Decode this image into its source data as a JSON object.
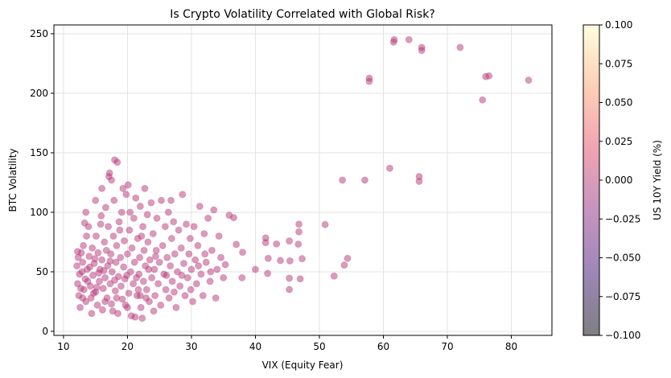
{
  "chart_data": {
    "type": "scatter",
    "title": "Is Crypto Volatility Correlated with Global Risk?",
    "xlabel": "VIX (Equity Fear)",
    "ylabel": "BTC Volatility",
    "xlim": [
      8.5,
      86.35
    ],
    "ylim": [
      -3.4,
      257.4
    ],
    "xticks": [
      10,
      20,
      30,
      40,
      50,
      60,
      70,
      80
    ],
    "yticks": [
      0,
      50,
      100,
      150,
      200,
      250
    ],
    "grid": true,
    "marker_color": "#b73779",
    "marker_alpha": 0.5,
    "colorbar": {
      "label": "US 10Y Yield (%)",
      "colormap": "magma",
      "range": [
        -0.1,
        0.1
      ],
      "ticks": [
        "-0.100",
        "-0.075",
        "-0.050",
        "-0.025",
        "0.000",
        "0.025",
        "0.050",
        "0.075",
        "0.100"
      ],
      "colors": [
        "#000004",
        "#3b0f70",
        "#8c2981",
        "#de4968",
        "#fe9f6d",
        "#fcfdbf"
      ]
    },
    "points": [
      [
        61.7,
        245
      ],
      [
        61.6,
        243
      ],
      [
        64.0,
        245
      ],
      [
        66.0,
        238.5
      ],
      [
        66.0,
        236
      ],
      [
        72.0,
        238.5
      ],
      [
        57.8,
        212.6
      ],
      [
        57.8,
        210
      ],
      [
        76.0,
        214
      ],
      [
        76.5,
        214.6
      ],
      [
        82.7,
        211
      ],
      [
        75.5,
        194.4
      ],
      [
        61.0,
        137
      ],
      [
        53.6,
        127
      ],
      [
        57.1,
        127
      ],
      [
        65.6,
        130
      ],
      [
        65.6,
        126
      ],
      [
        50.9,
        89.7
      ],
      [
        46.8,
        90
      ],
      [
        46.8,
        83.6
      ],
      [
        45.3,
        75.9
      ],
      [
        46.7,
        73.2
      ],
      [
        43.3,
        73.4
      ],
      [
        47.3,
        61
      ],
      [
        45.4,
        59.2
      ],
      [
        43.9,
        59.5
      ],
      [
        54.4,
        61.3
      ],
      [
        53.9,
        55.6
      ],
      [
        52.3,
        46.4
      ],
      [
        45.3,
        44.6
      ],
      [
        47.0,
        44.1
      ],
      [
        45.3,
        35.1
      ],
      [
        41.6,
        78.4
      ],
      [
        41.6,
        74.5
      ],
      [
        42.0,
        61.3
      ],
      [
        41.9,
        48.6
      ],
      [
        40.0,
        52
      ],
      [
        37.9,
        45
      ],
      [
        37.0,
        73
      ],
      [
        38.0,
        66.4
      ],
      [
        35.3,
        56
      ],
      [
        35.9,
        97.5
      ],
      [
        36.6,
        95.5
      ],
      [
        12.1,
        55
      ],
      [
        12.3,
        62
      ],
      [
        12.5,
        48
      ],
      [
        12.2,
        40
      ],
      [
        12.4,
        30
      ],
      [
        12.8,
        66
      ],
      [
        13,
        58
      ],
      [
        13.2,
        35
      ],
      [
        13.1,
        72
      ],
      [
        13.4,
        44
      ],
      [
        13.5,
        25
      ],
      [
        13.7,
        52
      ],
      [
        13.9,
        88
      ],
      [
        13.3,
        91
      ],
      [
        14,
        63
      ],
      [
        14.2,
        38
      ],
      [
        14.3,
        28
      ],
      [
        14.5,
        70
      ],
      [
        14.6,
        47
      ],
      [
        14.8,
        57
      ],
      [
        15,
        33
      ],
      [
        15.1,
        80
      ],
      [
        15.3,
        22
      ],
      [
        15.4,
        66
      ],
      [
        15.6,
        42
      ],
      [
        15.7,
        52
      ],
      [
        15.9,
        97
      ],
      [
        16,
        60
      ],
      [
        16.1,
        18
      ],
      [
        16.2,
        36
      ],
      [
        16.4,
        75
      ],
      [
        16.5,
        45
      ],
      [
        16.6,
        104
      ],
      [
        16.8,
        28
      ],
      [
        16.9,
        55
      ],
      [
        17,
        88
      ],
      [
        17.1,
        130
      ],
      [
        17.2,
        133
      ],
      [
        17.3,
        40
      ],
      [
        17.4,
        65
      ],
      [
        17.5,
        23
      ],
      [
        17.6,
        50
      ],
      [
        17.8,
        80
      ],
      [
        17.9,
        110
      ],
      [
        18,
        144
      ],
      [
        18.4,
        142
      ],
      [
        18.1,
        34
      ],
      [
        18.2,
        58
      ],
      [
        18.3,
        72
      ],
      [
        18.5,
        15
      ],
      [
        18.6,
        46
      ],
      [
        18.7,
        92
      ],
      [
        18.9,
        62
      ],
      [
        19,
        38
      ],
      [
        19.1,
        100
      ],
      [
        19.2,
        27
      ],
      [
        19.4,
        54
      ],
      [
        19.5,
        76
      ],
      [
        19.6,
        44
      ],
      [
        19.8,
        115
      ],
      [
        20,
        65
      ],
      [
        20.1,
        123
      ],
      [
        20.2,
        32
      ],
      [
        20.3,
        85
      ],
      [
        20.5,
        50
      ],
      [
        20.6,
        13
      ],
      [
        20.7,
        70
      ],
      [
        20.9,
        40
      ],
      [
        21,
        95
      ],
      [
        21.1,
        58
      ],
      [
        21.2,
        12
      ],
      [
        21.3,
        112
      ],
      [
        21.5,
        30
      ],
      [
        21.6,
        78
      ],
      [
        21.8,
        48
      ],
      [
        21.9,
        62
      ],
      [
        22,
        105
      ],
      [
        22.1,
        20
      ],
      [
        22.3,
        11
      ],
      [
        22.4,
        88
      ],
      [
        22.5,
        42
      ],
      [
        22.6,
        68
      ],
      [
        22.8,
        55
      ],
      [
        23,
        35
      ],
      [
        23.1,
        98
      ],
      [
        23.2,
        75
      ],
      [
        23.4,
        25
      ],
      [
        23.5,
        60
      ],
      [
        23.7,
        108
      ],
      [
        23.8,
        45
      ],
      [
        24,
        82
      ],
      [
        24.2,
        52
      ],
      [
        24.3,
        30
      ],
      [
        24.5,
        68
      ],
      [
        24.6,
        95
      ],
      [
        24.8,
        40
      ],
      [
        25,
        58
      ],
      [
        25.2,
        22
      ],
      [
        25.3,
        110
      ],
      [
        25.5,
        72
      ],
      [
        25.7,
        48
      ],
      [
        25.9,
        88
      ],
      [
        26,
        35
      ],
      [
        26.2,
        62
      ],
      [
        26.4,
        100
      ],
      [
        26.5,
        28
      ],
      [
        26.7,
        55
      ],
      [
        26.9,
        78
      ],
      [
        27,
        42
      ],
      [
        27.2,
        92
      ],
      [
        27.4,
        65
      ],
      [
        27.6,
        20
      ],
      [
        27.8,
        50
      ],
      [
        28,
        85
      ],
      [
        28.2,
        38
      ],
      [
        28.4,
        70
      ],
      [
        28.6,
        115
      ],
      [
        28.8,
        57
      ],
      [
        29,
        30
      ],
      [
        29.2,
        90
      ],
      [
        29.4,
        45
      ],
      [
        29.6,
        65
      ],
      [
        29.8,
        78
      ],
      [
        30,
        52
      ],
      [
        30.2,
        25
      ],
      [
        30.4,
        88
      ],
      [
        30.6,
        60
      ],
      [
        30.8,
        40
      ],
      [
        31,
        72
      ],
      [
        31.3,
        105
      ],
      [
        31.5,
        48
      ],
      [
        31.8,
        30
      ],
      [
        32,
        82
      ],
      [
        32.3,
        58
      ],
      [
        32.6,
        95
      ],
      [
        32.9,
        42
      ],
      [
        33.2,
        68
      ],
      [
        33.5,
        102
      ],
      [
        33.8,
        28
      ],
      [
        34,
        52
      ],
      [
        34.3,
        80
      ],
      [
        34.6,
        62
      ],
      [
        35,
        45
      ],
      [
        12.6,
        20
      ],
      [
        13.6,
        80
      ],
      [
        14.4,
        15
      ],
      [
        15.8,
        90
      ],
      [
        16.7,
        68
      ],
      [
        17.7,
        17
      ],
      [
        18.8,
        85
      ],
      [
        19.3,
        120
      ],
      [
        19.7,
        22
      ],
      [
        20.4,
        100
      ],
      [
        21.4,
        45
      ],
      [
        22.2,
        80
      ],
      [
        22.9,
        28
      ],
      [
        24.1,
        17
      ],
      [
        12.9,
        50
      ],
      [
        13.8,
        42
      ],
      [
        14.1,
        54
      ],
      [
        14.9,
        61
      ],
      [
        15.2,
        37
      ],
      [
        15.5,
        49
      ],
      [
        16.3,
        51
      ],
      [
        17.3,
        59
      ],
      [
        18,
        43
      ],
      [
        19.9,
        47
      ],
      [
        21.7,
        35
      ],
      [
        23.3,
        52
      ],
      [
        24.4,
        63
      ],
      [
        26.1,
        47
      ],
      [
        27.3,
        33
      ],
      [
        28.5,
        47
      ],
      [
        29.9,
        35
      ],
      [
        31.1,
        55
      ],
      [
        32.1,
        65
      ],
      [
        33,
        50
      ],
      [
        12.2,
        67
      ],
      [
        12.7,
        36
      ],
      [
        13,
        28
      ],
      [
        14.7,
        32
      ],
      [
        16.5,
        25
      ],
      [
        18.3,
        28
      ],
      [
        20,
        20
      ],
      [
        22,
        30
      ],
      [
        13.5,
        100
      ],
      [
        15,
        110
      ],
      [
        16,
        120
      ],
      [
        17.5,
        127
      ],
      [
        22.7,
        120
      ],
      [
        26.8,
        110
      ]
    ]
  }
}
